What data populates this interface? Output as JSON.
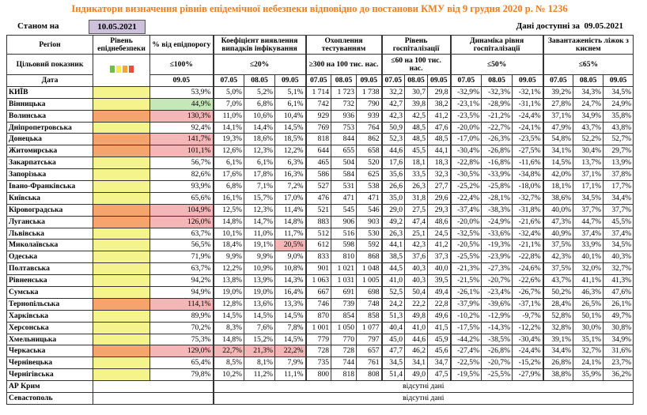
{
  "title": "Індикатори визначення рівнів епідемічної небезпеки відповідно до постанови КМУ від 9 грудня 2020 р. № 1236",
  "as_of_label": "Станом на",
  "as_of": "10.05.2021",
  "available_label": "Дані доступні за",
  "available_date": "09.05.2021",
  "header": {
    "region": "Регіон",
    "level": "Рівень епіднебезпеки",
    "pct": "% від епідпорогу",
    "target_label": "Цільовий показник",
    "pct_target": "≤100%",
    "date_label": "Дата",
    "pct_date": "09.05",
    "level_scale": [
      "#6cc04a",
      "#f2ea4a",
      "#f5a43c",
      "#e84c3d"
    ],
    "groups": [
      {
        "key": "coef",
        "title": "Коефіцієнт виявлення випадків інфікування",
        "target": "≤20%",
        "dates": [
          "07.05",
          "08.05",
          "09.05"
        ]
      },
      {
        "key": "test",
        "title": "Охоплення тестуванням",
        "target": "≥300 на 100 тис. нас.",
        "dates": [
          "07.05",
          "08.05",
          "09.05"
        ]
      },
      {
        "key": "hosp",
        "title": "Рівень госпіталізації",
        "target": "≤60 на 100 тис. нас.",
        "dates": [
          "07.05",
          "08.05",
          "09.05"
        ]
      },
      {
        "key": "dyn",
        "title": "Динаміка рівня госпіталізації",
        "target": "≤50%",
        "dates": [
          "07.05",
          "08.05",
          "09.05"
        ]
      },
      {
        "key": "beds",
        "title": "Завантаженість ліжок з киснем",
        "target": "≤65%",
        "dates": [
          "07.05",
          "08.05",
          "09.05"
        ]
      }
    ]
  },
  "rows": [
    {
      "region": "КИЇВ",
      "level_color": "#f4f38c",
      "pct": "53,9%",
      "coef": [
        "5,0%",
        "5,2%",
        "5,1%"
      ],
      "test": [
        "1 714",
        "1 723",
        "1 738"
      ],
      "hosp": [
        "32,2",
        "30,7",
        "29,8"
      ],
      "dyn": [
        "-32,9%",
        "-32,3%",
        "-32,1%"
      ],
      "beds": [
        "39,2%",
        "34,3%",
        "34,5%"
      ]
    },
    {
      "region": "Вінницька",
      "level_color": "#f4f38c",
      "pct": "44,9%",
      "pct_color": "#c6e8b8",
      "coef": [
        "7,0%",
        "6,8%",
        "6,1%"
      ],
      "test": [
        "742",
        "732",
        "790"
      ],
      "hosp": [
        "42,7",
        "39,8",
        "38,2"
      ],
      "dyn": [
        "-23,1%",
        "-28,9%",
        "-31,1%"
      ],
      "beds": [
        "27,8%",
        "24,7%",
        "24,9%"
      ]
    },
    {
      "region": "Волинська",
      "level_color": "#f5a46e",
      "pct": "130,3%",
      "pct_color": "#f4b6b6",
      "coef": [
        "11,0%",
        "10,6%",
        "10,4%"
      ],
      "test": [
        "929",
        "936",
        "939"
      ],
      "hosp": [
        "42,3",
        "42,5",
        "41,2"
      ],
      "dyn": [
        "-23,5%",
        "-21,2%",
        "-24,4%"
      ],
      "beds": [
        "37,1%",
        "34,9%",
        "35,8%"
      ]
    },
    {
      "region": "Дніпропетровська",
      "level_color": "#f4f38c",
      "pct": "92,4%",
      "coef": [
        "14,1%",
        "14,4%",
        "14,5%"
      ],
      "test": [
        "769",
        "753",
        "764"
      ],
      "hosp": [
        "50,9",
        "48,5",
        "47,6"
      ],
      "dyn": [
        "-20,0%",
        "-22,7%",
        "-24,1%"
      ],
      "beds": [
        "47,9%",
        "43,7%",
        "43,8%"
      ]
    },
    {
      "region": "Донецька",
      "level_color": "#f5a46e",
      "pct": "141,7%",
      "pct_color": "#f4b6b6",
      "coef": [
        "19,3%",
        "18,6%",
        "18,5%"
      ],
      "test": [
        "818",
        "844",
        "862"
      ],
      "hosp": [
        "52,3",
        "48,5",
        "48,5"
      ],
      "dyn": [
        "-17,0%",
        "-26,3%",
        "-23,5%"
      ],
      "beds": [
        "54,8%",
        "52,2%",
        "52,7%"
      ]
    },
    {
      "region": "Житомирська",
      "level_color": "#f5a46e",
      "pct": "101,1%",
      "pct_color": "#f4b6b6",
      "coef": [
        "12,6%",
        "12,3%",
        "12,2%"
      ],
      "test": [
        "644",
        "655",
        "658"
      ],
      "hosp": [
        "44,6",
        "45,5",
        "44,1"
      ],
      "dyn": [
        "-30,4%",
        "-26,8%",
        "-27,5%"
      ],
      "beds": [
        "34,1%",
        "30,4%",
        "29,7%"
      ]
    },
    {
      "region": "Закарпатська",
      "level_color": "#f4f38c",
      "pct": "56,7%",
      "coef": [
        "6,1%",
        "6,1%",
        "6,3%"
      ],
      "test": [
        "465",
        "504",
        "520"
      ],
      "hosp": [
        "17,6",
        "18,1",
        "18,3"
      ],
      "dyn": [
        "-22,8%",
        "-16,8%",
        "-11,6%"
      ],
      "beds": [
        "14,5%",
        "13,7%",
        "13,9%"
      ]
    },
    {
      "region": "Запорізька",
      "level_color": "#f4f38c",
      "pct": "82,6%",
      "coef": [
        "17,6%",
        "17,8%",
        "16,3%"
      ],
      "test": [
        "586",
        "584",
        "625"
      ],
      "hosp": [
        "35,6",
        "33,5",
        "32,3"
      ],
      "dyn": [
        "-30,5%",
        "-33,9%",
        "-34,8%"
      ],
      "beds": [
        "42,0%",
        "37,1%",
        "37,8%"
      ]
    },
    {
      "region": "Івано-Франківська",
      "level_color": "#f4f38c",
      "pct": "93,9%",
      "coef": [
        "6,8%",
        "7,1%",
        "7,2%"
      ],
      "test": [
        "527",
        "531",
        "538"
      ],
      "hosp": [
        "26,6",
        "26,3",
        "27,7"
      ],
      "dyn": [
        "-25,2%",
        "-25,8%",
        "-18,0%"
      ],
      "beds": [
        "18,1%",
        "17,1%",
        "17,7%"
      ]
    },
    {
      "region": "Київська",
      "level_color": "#f4f38c",
      "pct": "65,6%",
      "coef": [
        "16,1%",
        "15,7%",
        "17,0%"
      ],
      "test": [
        "476",
        "471",
        "471"
      ],
      "hosp": [
        "35,0",
        "31,8",
        "29,6"
      ],
      "dyn": [
        "-22,4%",
        "-28,1%",
        "-32,7%"
      ],
      "beds": [
        "38,6%",
        "34,5%",
        "34,4%"
      ]
    },
    {
      "region": "Кіровоградська",
      "level_color": "#f5a46e",
      "pct": "104,9%",
      "pct_color": "#f4b6b6",
      "coef": [
        "12,5%",
        "12,3%",
        "11,4%"
      ],
      "test": [
        "521",
        "545",
        "546"
      ],
      "hosp": [
        "29,0",
        "27,5",
        "29,3"
      ],
      "dyn": [
        "-37,4%",
        "-38,3%",
        "-31,8%"
      ],
      "beds": [
        "40,0%",
        "37,7%",
        "37,7%"
      ]
    },
    {
      "region": "Луганська",
      "level_color": "#f5a46e",
      "pct": "126,0%",
      "pct_color": "#f4b6b6",
      "coef": [
        "14,8%",
        "14,7%",
        "14,8%"
      ],
      "test": [
        "883",
        "906",
        "903"
      ],
      "hosp": [
        "49,2",
        "47,4",
        "48,6"
      ],
      "dyn": [
        "-20,0%",
        "-24,9%",
        "-21,6%"
      ],
      "beds": [
        "47,3%",
        "44,7%",
        "45,5%"
      ]
    },
    {
      "region": "Львівська",
      "level_color": "#f4f38c",
      "pct": "63,7%",
      "coef": [
        "10,1%",
        "11,0%",
        "11,7%"
      ],
      "test": [
        "512",
        "516",
        "530"
      ],
      "hosp": [
        "26,3",
        "25,1",
        "24,5"
      ],
      "dyn": [
        "-32,5%",
        "-33,6%",
        "-32,4%"
      ],
      "beds": [
        "40,9%",
        "37,4%",
        "37,4%"
      ]
    },
    {
      "region": "Миколаївська",
      "level_color": "#f4f38c",
      "pct": "56,5%",
      "coef": [
        "18,4%",
        "19,1%",
        "20,5%"
      ],
      "coef_colors": [
        null,
        null,
        "#f4b6b6"
      ],
      "test": [
        "612",
        "598",
        "592"
      ],
      "hosp": [
        "44,1",
        "42,3",
        "41,2"
      ],
      "dyn": [
        "-20,5%",
        "-19,3%",
        "-21,1%"
      ],
      "beds": [
        "37,5%",
        "33,9%",
        "34,5%"
      ]
    },
    {
      "region": "Одеська",
      "level_color": "#f4f38c",
      "pct": "71,9%",
      "coef": [
        "9,9%",
        "9,9%",
        "9,0%"
      ],
      "test": [
        "833",
        "810",
        "868"
      ],
      "hosp": [
        "38,5",
        "37,6",
        "37,3"
      ],
      "dyn": [
        "-25,5%",
        "-23,9%",
        "-22,8%"
      ],
      "beds": [
        "42,3%",
        "40,1%",
        "40,3%"
      ]
    },
    {
      "region": "Полтавська",
      "level_color": "#f4f38c",
      "pct": "63,7%",
      "coef": [
        "12,2%",
        "10,9%",
        "10,8%"
      ],
      "test": [
        "901",
        "1 021",
        "1 048"
      ],
      "hosp": [
        "44,5",
        "40,3",
        "40,0"
      ],
      "dyn": [
        "-21,3%",
        "-27,3%",
        "-24,6%"
      ],
      "beds": [
        "37,5%",
        "32,0%",
        "32,7%"
      ]
    },
    {
      "region": "Рівненська",
      "level_color": "#f4f38c",
      "pct": "94,2%",
      "coef": [
        "13,8%",
        "13,9%",
        "14,3%"
      ],
      "test": [
        "1 063",
        "1 031",
        "1 005"
      ],
      "hosp": [
        "41,0",
        "40,3",
        "39,5"
      ],
      "dyn": [
        "-21,5%",
        "-20,7%",
        "-22,6%"
      ],
      "beds": [
        "43,7%",
        "41,1%",
        "41,3%"
      ]
    },
    {
      "region": "Сумська",
      "level_color": "#f4f38c",
      "pct": "94,9%",
      "coef": [
        "19,0%",
        "19,0%",
        "16,4%"
      ],
      "test": [
        "667",
        "691",
        "698"
      ],
      "hosp": [
        "52,5",
        "50,4",
        "49,4"
      ],
      "dyn": [
        "-26,1%",
        "-23,4%",
        "-26,7%"
      ],
      "beds": [
        "50,2%",
        "46,3%",
        "47,6%"
      ]
    },
    {
      "region": "Тернопільська",
      "level_color": "#f5a46e",
      "pct": "114,1%",
      "pct_color": "#f4b6b6",
      "coef": [
        "12,8%",
        "13,6%",
        "13,3%"
      ],
      "test": [
        "746",
        "739",
        "748"
      ],
      "hosp": [
        "24,2",
        "22,2",
        "22,8"
      ],
      "dyn": [
        "-37,9%",
        "-39,6%",
        "-37,1%"
      ],
      "beds": [
        "28,4%",
        "26,5%",
        "26,1%"
      ]
    },
    {
      "region": "Харківська",
      "level_color": "#f4f38c",
      "pct": "89,9%",
      "coef": [
        "14,5%",
        "14,5%",
        "14,5%"
      ],
      "test": [
        "870",
        "854",
        "858"
      ],
      "hosp": [
        "51,3",
        "49,8",
        "49,6"
      ],
      "dyn": [
        "-10,2%",
        "-12,9%",
        "-9,7%"
      ],
      "beds": [
        "52,8%",
        "50,1%",
        "49,7%"
      ]
    },
    {
      "region": "Херсонська",
      "level_color": "#f4f38c",
      "pct": "70,2%",
      "coef": [
        "8,3%",
        "7,6%",
        "7,8%"
      ],
      "test": [
        "1 001",
        "1 050",
        "1 077"
      ],
      "hosp": [
        "40,4",
        "41,0",
        "41,5"
      ],
      "dyn": [
        "-17,5%",
        "-14,3%",
        "-12,2%"
      ],
      "beds": [
        "32,8%",
        "30,0%",
        "30,8%"
      ]
    },
    {
      "region": "Хмельницька",
      "level_color": "#f4f38c",
      "pct": "75,3%",
      "coef": [
        "14,8%",
        "15,2%",
        "14,5%"
      ],
      "test": [
        "779",
        "770",
        "797"
      ],
      "hosp": [
        "45,0",
        "44,6",
        "45,9"
      ],
      "dyn": [
        "-44,2%",
        "-38,5%",
        "-30,4%"
      ],
      "beds": [
        "39,1%",
        "35,1%",
        "34,9%"
      ]
    },
    {
      "region": "Черкаська",
      "level_color": "#f5a46e",
      "pct": "129,0%",
      "pct_color": "#f4b6b6",
      "coef": [
        "22,7%",
        "21,3%",
        "22,2%"
      ],
      "coef_colors": [
        "#f4b6b6",
        "#f4b6b6",
        "#f4b6b6"
      ],
      "test": [
        "728",
        "728",
        "657"
      ],
      "hosp": [
        "47,7",
        "46,2",
        "45,6"
      ],
      "dyn": [
        "-27,4%",
        "-26,8%",
        "-24,4%"
      ],
      "beds": [
        "34,4%",
        "32,7%",
        "31,6%"
      ]
    },
    {
      "region": "Чернівецька",
      "level_color": "#f4f38c",
      "pct": "65,4%",
      "coef": [
        "8,5%",
        "8,1%",
        "7,9%"
      ],
      "test": [
        "735",
        "744",
        "761"
      ],
      "hosp": [
        "34,5",
        "34,1",
        "34,7"
      ],
      "dyn": [
        "-22,5%",
        "-20,7%",
        "-15,2%"
      ],
      "beds": [
        "26,8%",
        "24,1%",
        "23,7%"
      ]
    },
    {
      "region": "Чернігівська",
      "level_color": "#f4f38c",
      "pct": "79,8%",
      "coef": [
        "10,2%",
        "11,2%",
        "11,1%"
      ],
      "test": [
        "800",
        "818",
        "808"
      ],
      "hosp": [
        "51,4",
        "49,0",
        "47,5"
      ],
      "dyn": [
        "-19,5%",
        "-25,5%",
        "-27,9%"
      ],
      "beds": [
        "38,8%",
        "35,9%",
        "36,2%"
      ]
    },
    {
      "region": "АР Крим",
      "note": "відсутні дані"
    },
    {
      "region": "Севастополь",
      "note": "відсутні дані"
    }
  ]
}
